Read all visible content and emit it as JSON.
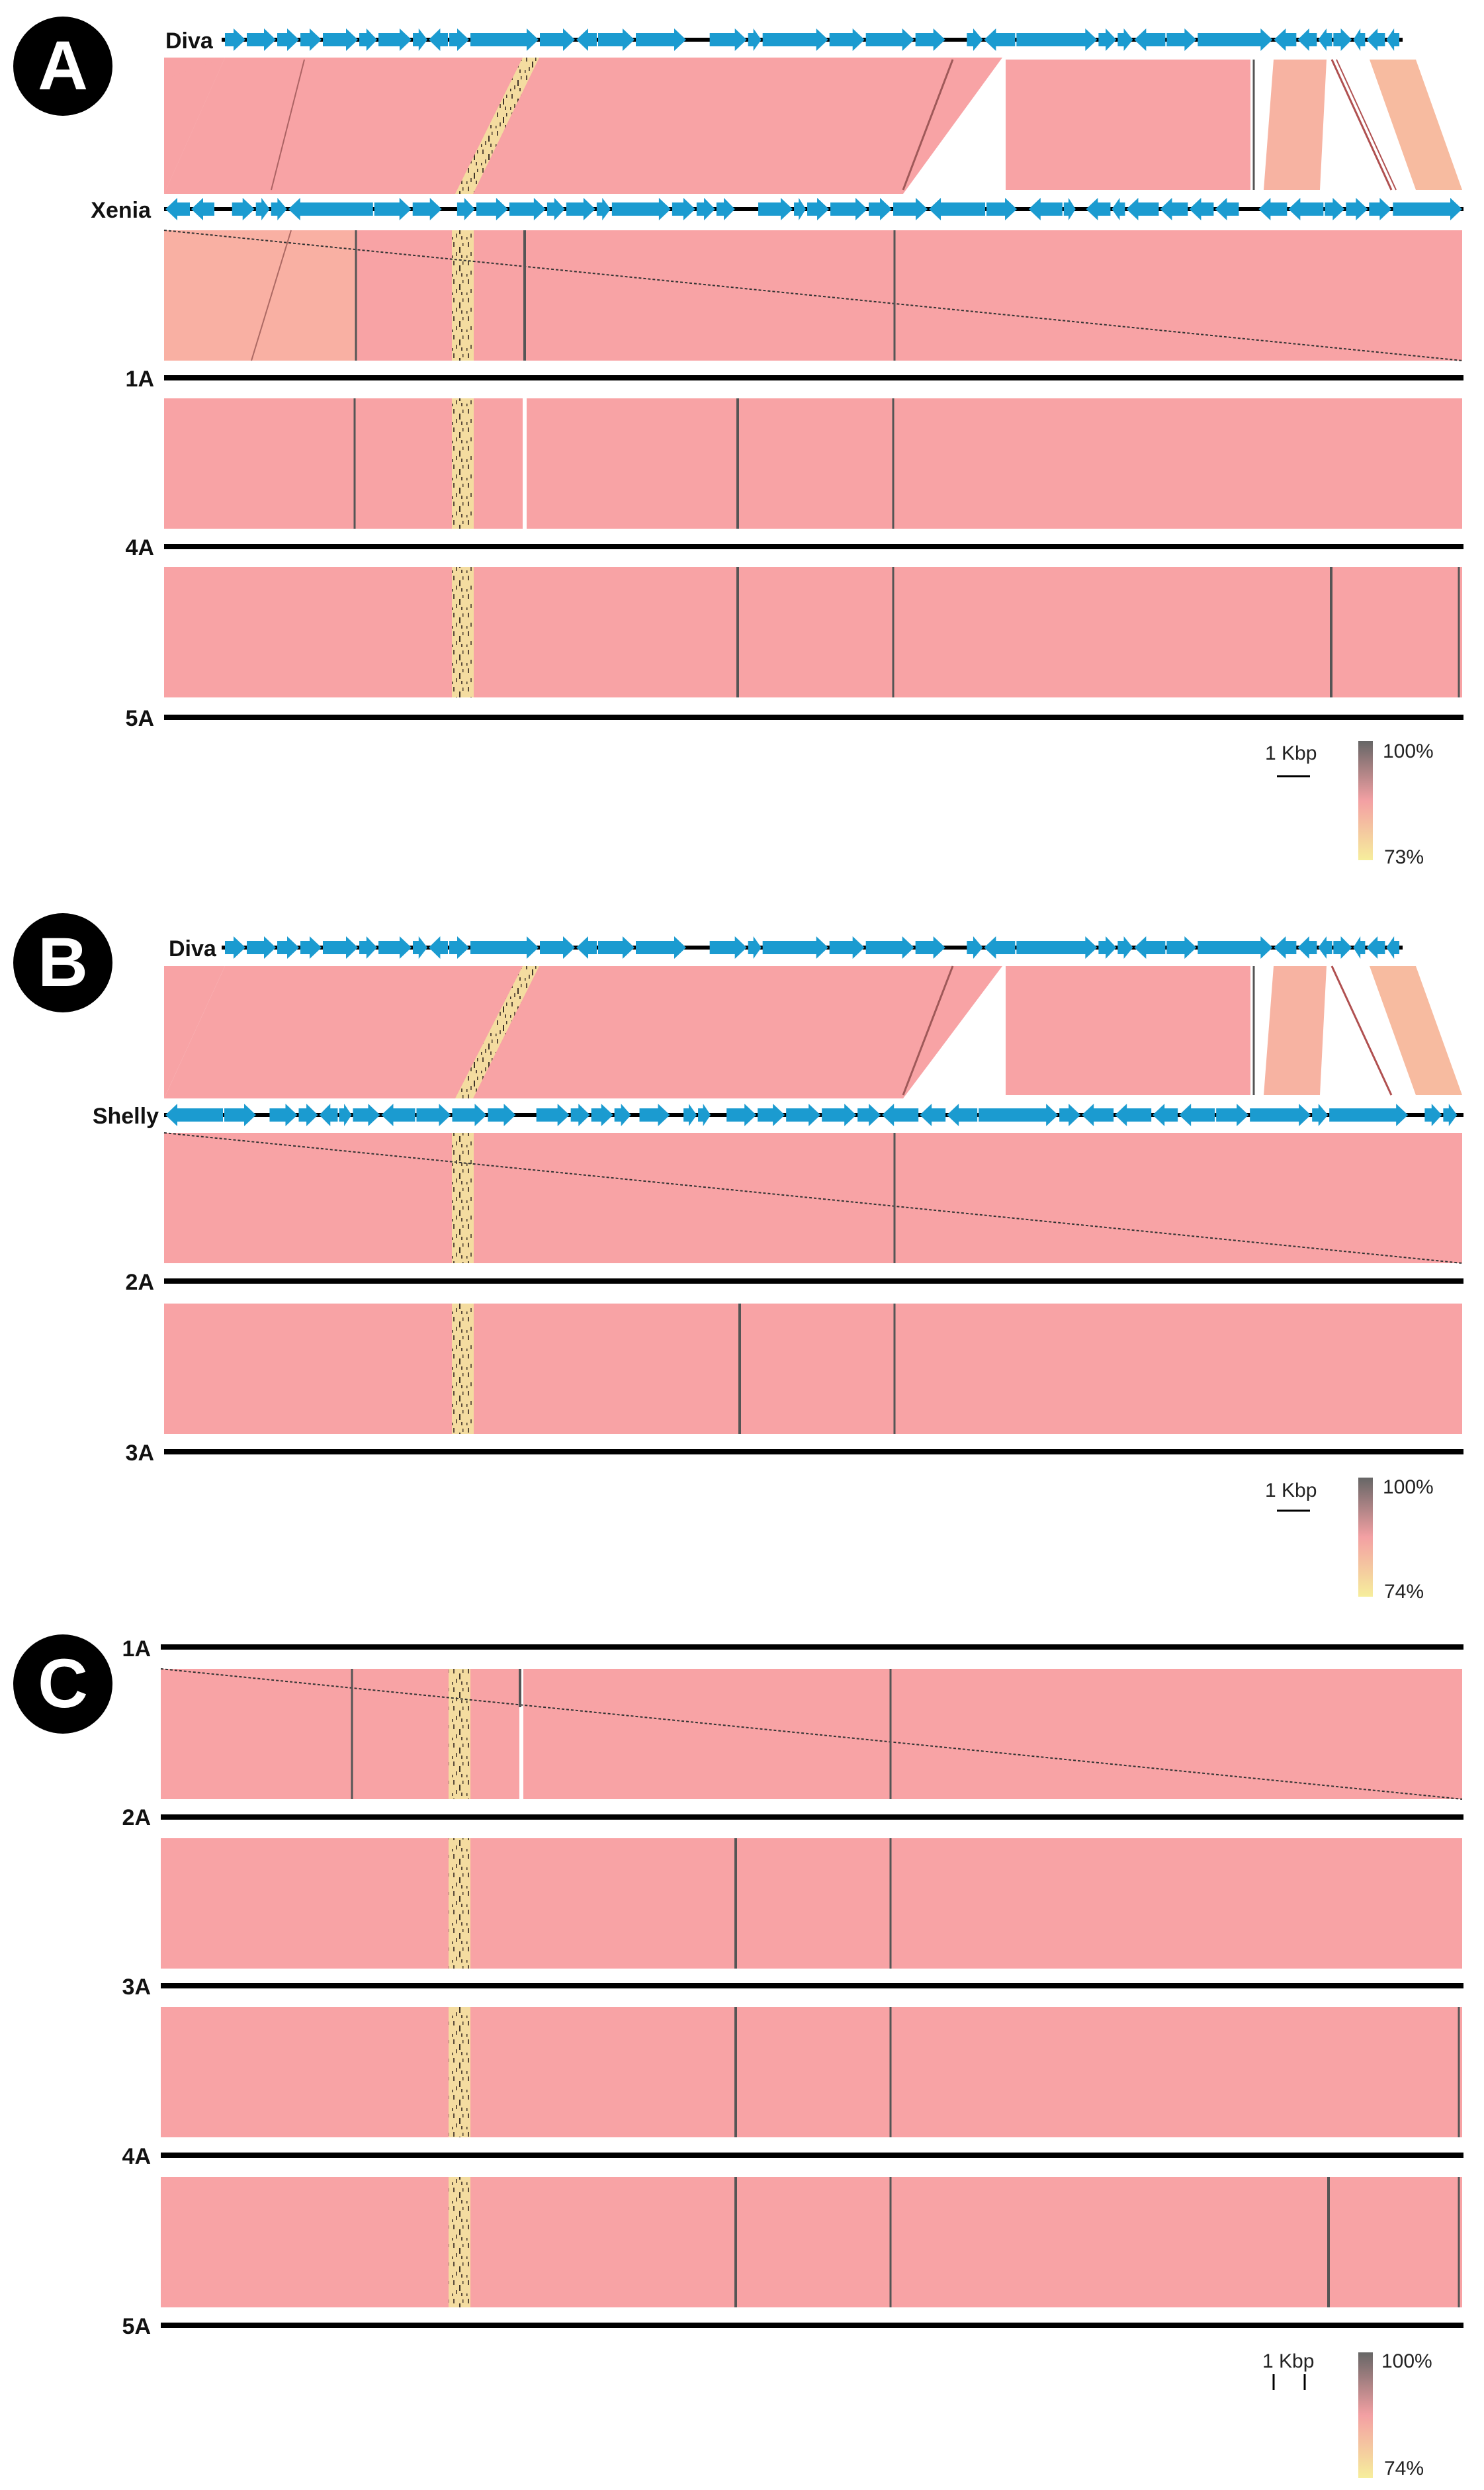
{
  "figure": {
    "panels": [
      {
        "letter": "A",
        "genomes": [
          {
            "label": "Diva",
            "kind": "annotated"
          },
          {
            "label": "Xenia",
            "kind": "annotated"
          },
          {
            "label": "1A",
            "kind": "line"
          },
          {
            "label": "4A",
            "kind": "line"
          },
          {
            "label": "5A",
            "kind": "line"
          }
        ],
        "legend": {
          "scale": "1 Kbp",
          "max": "100%",
          "min": "73%"
        }
      },
      {
        "letter": "B",
        "genomes": [
          {
            "label": "Diva",
            "kind": "annotated"
          },
          {
            "label": "Shelly",
            "kind": "annotated"
          },
          {
            "label": "2A",
            "kind": "line"
          },
          {
            "label": "3A",
            "kind": "line"
          }
        ],
        "legend": {
          "scale": "1 Kbp",
          "max": "100%",
          "min": "74%"
        }
      },
      {
        "letter": "C",
        "genomes": [
          {
            "label": "1A",
            "kind": "line"
          },
          {
            "label": "2A",
            "kind": "line"
          },
          {
            "label": "3A",
            "kind": "line"
          },
          {
            "label": "4A",
            "kind": "line"
          },
          {
            "label": "5A",
            "kind": "line"
          }
        ],
        "legend": {
          "scale": "1 Kbp",
          "max": "100%",
          "min": "74%"
        }
      }
    ],
    "colors": {
      "gene_arrow": "#1b9bd0",
      "backbone": "#000000",
      "high_identity": "#f8a3a5",
      "mid_identity": "#f7b9a0",
      "low_identity": "#f5dc9c",
      "gradient_top": "#555555",
      "gradient_pink": "#f4a3a6",
      "gradient_bottom": "#f6ee9c",
      "panel_badge": "#000000"
    }
  }
}
